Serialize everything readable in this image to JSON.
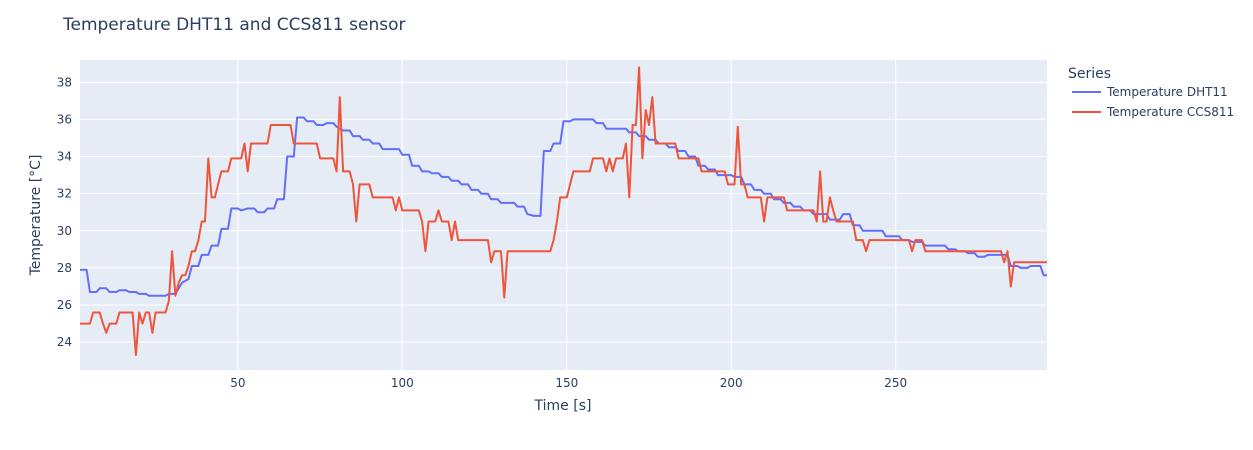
{
  "chart_data": {
    "type": "line",
    "title": "Temperature DHT11 and CCS811 sensor",
    "xlabel": "Time [s]",
    "ylabel": "Temperature [°C]",
    "xlim": [
      2,
      296
    ],
    "ylim": [
      22.5,
      39.2
    ],
    "xticks": [
      50,
      100,
      150,
      200,
      250
    ],
    "yticks": [
      24,
      26,
      28,
      30,
      32,
      34,
      36,
      38
    ],
    "grid": true,
    "legend": {
      "title": "Series",
      "position": "right"
    },
    "series": [
      {
        "name": "Temperature DHT11",
        "color": "#636efa",
        "points": [
          [
            2,
            27.9
          ],
          [
            4,
            27.9
          ],
          [
            5,
            26.7
          ],
          [
            7,
            26.7
          ],
          [
            8,
            26.9
          ],
          [
            10,
            26.9
          ],
          [
            11,
            26.7
          ],
          [
            13,
            26.7
          ],
          [
            14,
            26.8
          ],
          [
            16,
            26.8
          ],
          [
            17,
            26.7
          ],
          [
            19,
            26.7
          ],
          [
            20,
            26.6
          ],
          [
            22,
            26.6
          ],
          [
            23,
            26.5
          ],
          [
            28,
            26.5
          ],
          [
            29,
            26.6
          ],
          [
            31,
            26.6
          ],
          [
            32,
            26.9
          ],
          [
            33,
            27.2
          ],
          [
            35,
            27.4
          ],
          [
            36,
            28.1
          ],
          [
            38,
            28.1
          ],
          [
            39,
            28.7
          ],
          [
            41,
            28.7
          ],
          [
            42,
            29.2
          ],
          [
            44,
            29.2
          ],
          [
            45,
            30.1
          ],
          [
            47,
            30.1
          ],
          [
            48,
            31.2
          ],
          [
            50,
            31.2
          ],
          [
            51,
            31.1
          ],
          [
            53,
            31.2
          ],
          [
            55,
            31.2
          ],
          [
            56,
            31.0
          ],
          [
            58,
            31.0
          ],
          [
            59,
            31.2
          ],
          [
            61,
            31.2
          ],
          [
            62,
            31.7
          ],
          [
            64,
            31.7
          ],
          [
            65,
            34.0
          ],
          [
            67,
            34.0
          ],
          [
            68,
            36.1
          ],
          [
            70,
            36.1
          ],
          [
            71,
            35.9
          ],
          [
            73,
            35.9
          ],
          [
            74,
            35.7
          ],
          [
            76,
            35.7
          ],
          [
            77,
            35.8
          ],
          [
            79,
            35.8
          ],
          [
            80,
            35.6
          ],
          [
            82,
            35.4
          ],
          [
            84,
            35.4
          ],
          [
            85,
            35.1
          ],
          [
            87,
            35.1
          ],
          [
            88,
            34.9
          ],
          [
            90,
            34.9
          ],
          [
            91,
            34.7
          ],
          [
            93,
            34.7
          ],
          [
            94,
            34.4
          ],
          [
            99,
            34.4
          ],
          [
            100,
            34.1
          ],
          [
            102,
            34.1
          ],
          [
            103,
            33.5
          ],
          [
            105,
            33.5
          ],
          [
            106,
            33.2
          ],
          [
            108,
            33.2
          ],
          [
            109,
            33.1
          ],
          [
            111,
            33.1
          ],
          [
            112,
            32.9
          ],
          [
            114,
            32.9
          ],
          [
            115,
            32.7
          ],
          [
            117,
            32.7
          ],
          [
            118,
            32.5
          ],
          [
            120,
            32.5
          ],
          [
            121,
            32.2
          ],
          [
            123,
            32.2
          ],
          [
            124,
            32.0
          ],
          [
            126,
            32.0
          ],
          [
            127,
            31.7
          ],
          [
            129,
            31.7
          ],
          [
            130,
            31.5
          ],
          [
            134,
            31.5
          ],
          [
            135,
            31.3
          ],
          [
            137,
            31.3
          ],
          [
            138,
            30.9
          ],
          [
            140,
            30.8
          ],
          [
            142,
            30.8
          ],
          [
            143,
            34.3
          ],
          [
            145,
            34.3
          ],
          [
            146,
            34.7
          ],
          [
            148,
            34.7
          ],
          [
            149,
            35.9
          ],
          [
            151,
            35.9
          ],
          [
            152,
            36.0
          ],
          [
            158,
            36.0
          ],
          [
            159,
            35.8
          ],
          [
            161,
            35.8
          ],
          [
            162,
            35.5
          ],
          [
            168,
            35.5
          ],
          [
            169,
            35.3
          ],
          [
            171,
            35.3
          ],
          [
            172,
            35.1
          ],
          [
            174,
            35.1
          ],
          [
            175,
            34.9
          ],
          [
            177,
            34.9
          ],
          [
            178,
            34.7
          ],
          [
            180,
            34.7
          ],
          [
            181,
            34.5
          ],
          [
            183,
            34.5
          ],
          [
            184,
            34.3
          ],
          [
            186,
            34.3
          ],
          [
            187,
            34.0
          ],
          [
            189,
            34.0
          ],
          [
            190,
            33.5
          ],
          [
            192,
            33.5
          ],
          [
            193,
            33.3
          ],
          [
            195,
            33.3
          ],
          [
            196,
            33.0
          ],
          [
            200,
            33.0
          ],
          [
            201,
            32.9
          ],
          [
            203,
            32.9
          ],
          [
            204,
            32.5
          ],
          [
            206,
            32.5
          ],
          [
            207,
            32.2
          ],
          [
            209,
            32.2
          ],
          [
            210,
            32.0
          ],
          [
            212,
            32.0
          ],
          [
            213,
            31.7
          ],
          [
            215,
            31.7
          ],
          [
            216,
            31.5
          ],
          [
            218,
            31.5
          ],
          [
            219,
            31.3
          ],
          [
            221,
            31.3
          ],
          [
            222,
            31.1
          ],
          [
            224,
            31.1
          ],
          [
            225,
            30.9
          ],
          [
            229,
            30.9
          ],
          [
            230,
            30.6
          ],
          [
            233,
            30.6
          ],
          [
            234,
            30.9
          ],
          [
            236,
            30.9
          ],
          [
            237,
            30.3
          ],
          [
            239,
            30.3
          ],
          [
            240,
            30.0
          ],
          [
            246,
            30.0
          ],
          [
            247,
            29.7
          ],
          [
            251,
            29.7
          ],
          [
            252,
            29.5
          ],
          [
            254,
            29.5
          ],
          [
            255,
            29.4
          ],
          [
            258,
            29.4
          ],
          [
            259,
            29.2
          ],
          [
            265,
            29.2
          ],
          [
            266,
            29.0
          ],
          [
            268,
            29.0
          ],
          [
            269,
            28.9
          ],
          [
            271,
            28.9
          ],
          [
            272,
            28.8
          ],
          [
            274,
            28.8
          ],
          [
            275,
            28.6
          ],
          [
            277,
            28.6
          ],
          [
            278,
            28.7
          ],
          [
            284,
            28.7
          ],
          [
            285,
            28.1
          ],
          [
            287,
            28.1
          ],
          [
            288,
            28.0
          ],
          [
            290,
            28.0
          ],
          [
            291,
            28.1
          ],
          [
            294,
            28.1
          ],
          [
            295,
            27.6
          ],
          [
            296,
            27.6
          ]
        ]
      },
      {
        "name": "Temperature CCS811",
        "color": "#ef553b",
        "points": [
          [
            2,
            25.0
          ],
          [
            5,
            25.0
          ],
          [
            6,
            25.6
          ],
          [
            8,
            25.6
          ],
          [
            9,
            25.0
          ],
          [
            10,
            24.5
          ],
          [
            11,
            25.0
          ],
          [
            13,
            25.0
          ],
          [
            14,
            25.6
          ],
          [
            18,
            25.6
          ],
          [
            19,
            23.3
          ],
          [
            20,
            25.6
          ],
          [
            21,
            25.0
          ],
          [
            22,
            25.6
          ],
          [
            23,
            25.6
          ],
          [
            24,
            24.5
          ],
          [
            25,
            25.6
          ],
          [
            28,
            25.6
          ],
          [
            29,
            26.2
          ],
          [
            30,
            28.9
          ],
          [
            31,
            26.5
          ],
          [
            32,
            27.2
          ],
          [
            33,
            27.6
          ],
          [
            34,
            27.6
          ],
          [
            35,
            28.1
          ],
          [
            36,
            28.9
          ],
          [
            37,
            28.9
          ],
          [
            38,
            29.5
          ],
          [
            39,
            30.5
          ],
          [
            40,
            30.5
          ],
          [
            41,
            33.9
          ],
          [
            42,
            31.8
          ],
          [
            43,
            31.8
          ],
          [
            44,
            32.5
          ],
          [
            45,
            33.2
          ],
          [
            47,
            33.2
          ],
          [
            48,
            33.9
          ],
          [
            51,
            33.9
          ],
          [
            52,
            34.7
          ],
          [
            53,
            33.2
          ],
          [
            54,
            34.7
          ],
          [
            59,
            34.7
          ],
          [
            60,
            35.7
          ],
          [
            66,
            35.7
          ],
          [
            67,
            34.7
          ],
          [
            74,
            34.7
          ],
          [
            75,
            33.9
          ],
          [
            79,
            33.9
          ],
          [
            80,
            33.2
          ],
          [
            81,
            37.2
          ],
          [
            82,
            33.2
          ],
          [
            84,
            33.2
          ],
          [
            85,
            32.5
          ],
          [
            86,
            30.5
          ],
          [
            87,
            32.5
          ],
          [
            90,
            32.5
          ],
          [
            91,
            31.8
          ],
          [
            97,
            31.8
          ],
          [
            98,
            31.1
          ],
          [
            99,
            31.8
          ],
          [
            100,
            31.1
          ],
          [
            105,
            31.1
          ],
          [
            106,
            30.5
          ],
          [
            107,
            28.9
          ],
          [
            108,
            30.5
          ],
          [
            110,
            30.5
          ],
          [
            111,
            31.1
          ],
          [
            112,
            30.5
          ],
          [
            114,
            30.5
          ],
          [
            115,
            29.5
          ],
          [
            116,
            30.5
          ],
          [
            117,
            29.5
          ],
          [
            126,
            29.5
          ],
          [
            127,
            28.3
          ],
          [
            128,
            28.9
          ],
          [
            130,
            28.9
          ],
          [
            131,
            26.4
          ],
          [
            132,
            28.9
          ],
          [
            145,
            28.9
          ],
          [
            146,
            29.5
          ],
          [
            147,
            30.5
          ],
          [
            148,
            31.8
          ],
          [
            150,
            31.8
          ],
          [
            151,
            32.5
          ],
          [
            152,
            33.2
          ],
          [
            157,
            33.2
          ],
          [
            158,
            33.9
          ],
          [
            161,
            33.9
          ],
          [
            162,
            33.2
          ],
          [
            163,
            33.9
          ],
          [
            164,
            33.2
          ],
          [
            165,
            33.9
          ],
          [
            167,
            33.9
          ],
          [
            168,
            34.7
          ],
          [
            169,
            31.8
          ],
          [
            170,
            35.7
          ],
          [
            171,
            35.7
          ],
          [
            172,
            38.8
          ],
          [
            173,
            33.9
          ],
          [
            174,
            36.5
          ],
          [
            175,
            35.7
          ],
          [
            176,
            37.2
          ],
          [
            177,
            34.7
          ],
          [
            183,
            34.7
          ],
          [
            184,
            33.9
          ],
          [
            190,
            33.9
          ],
          [
            191,
            33.2
          ],
          [
            198,
            33.2
          ],
          [
            199,
            32.5
          ],
          [
            201,
            32.5
          ],
          [
            202,
            35.6
          ],
          [
            203,
            32.5
          ],
          [
            204,
            32.5
          ],
          [
            205,
            31.8
          ],
          [
            209,
            31.8
          ],
          [
            210,
            30.5
          ],
          [
            211,
            31.8
          ],
          [
            216,
            31.8
          ],
          [
            217,
            31.1
          ],
          [
            225,
            31.1
          ],
          [
            226,
            30.5
          ],
          [
            227,
            33.2
          ],
          [
            228,
            30.5
          ],
          [
            229,
            30.5
          ],
          [
            230,
            31.8
          ],
          [
            231,
            31.1
          ],
          [
            232,
            30.5
          ],
          [
            237,
            30.5
          ],
          [
            238,
            29.5
          ],
          [
            240,
            29.5
          ],
          [
            241,
            28.9
          ],
          [
            242,
            29.5
          ],
          [
            254,
            29.5
          ],
          [
            255,
            28.9
          ],
          [
            256,
            29.5
          ],
          [
            258,
            29.5
          ],
          [
            259,
            28.9
          ],
          [
            282,
            28.9
          ],
          [
            283,
            28.3
          ],
          [
            284,
            28.9
          ],
          [
            285,
            27.0
          ],
          [
            286,
            28.3
          ],
          [
            299,
            28.3
          ],
          [
            300,
            27.6
          ]
        ]
      }
    ]
  }
}
